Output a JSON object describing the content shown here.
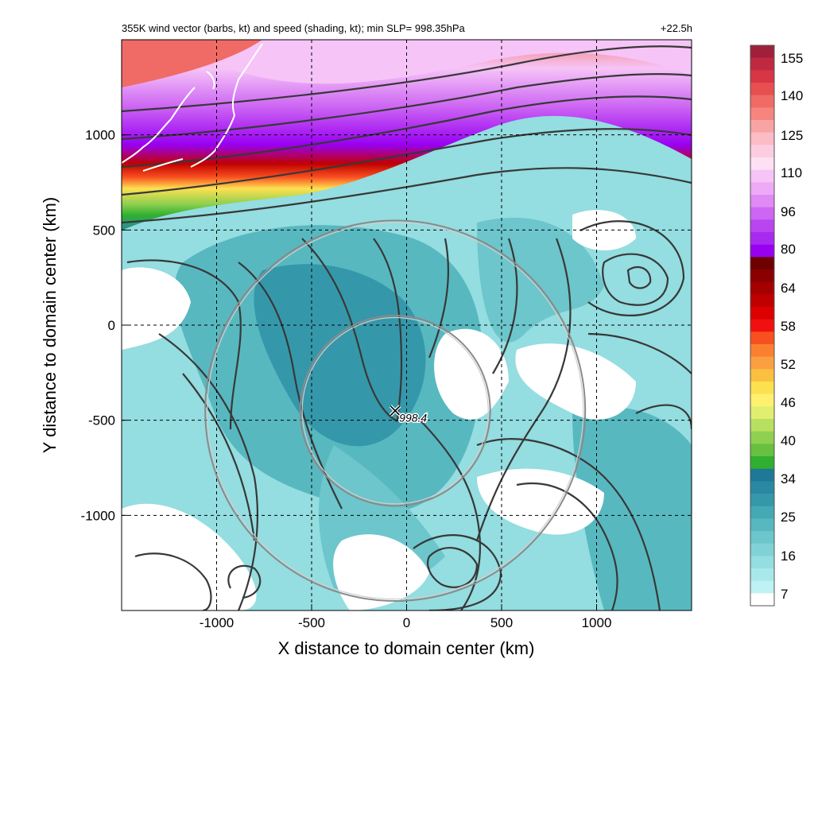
{
  "chart_data": {
    "type": "heatmap",
    "title": "355K wind vector (barbs, kt) and speed (shading, kt); min SLP= 998.35hPa",
    "forecast_time": "+22.5h",
    "xlabel": "X distance to domain center (km)",
    "ylabel": "Y distance to domain center (km)",
    "xlim": [
      -1500,
      1500
    ],
    "ylim": [
      -1500,
      1500
    ],
    "x_ticks": [
      -1000,
      -500,
      0,
      500,
      1000
    ],
    "y_ticks": [
      1000,
      500,
      0,
      -500,
      -1000
    ],
    "x_tick_labels": [
      "-1000",
      "-500",
      "0",
      "500",
      "1000"
    ],
    "y_tick_labels": [
      "1000",
      "500",
      "0",
      "-500",
      "-1000"
    ],
    "grid": "dashed",
    "colorbar": {
      "labels": [
        "155",
        "140",
        "125",
        "110",
        "96",
        "80",
        "64",
        "58",
        "52",
        "46",
        "40",
        "34",
        "25",
        "16",
        "7"
      ],
      "colors": [
        "#a0203a",
        "#c02a40",
        "#d83545",
        "#e8504f",
        "#f06a66",
        "#f7857f",
        "#f9a4a4",
        "#fbbcc5",
        "#fccde1",
        "#fde0f3",
        "#f6c4f7",
        "#eeaaf6",
        "#e08af5",
        "#cd66f3",
        "#b845f0",
        "#a82af0",
        "#9800f2",
        "#6e0000",
        "#8a0000",
        "#a50000",
        "#c00000",
        "#dc0000",
        "#f01010",
        "#f85020",
        "#fa8030",
        "#fba040",
        "#fcc040",
        "#fde050",
        "#fff070",
        "#e0ef70",
        "#b8e060",
        "#90d050",
        "#68c040",
        "#30b030",
        "#1e7896",
        "#2a88a2",
        "#3598aa",
        "#45a8b4",
        "#58b8c0",
        "#6cc6cb",
        "#80d2d6",
        "#94dde0",
        "#a8e8eb",
        "#bef2f4",
        "#ffffff"
      ]
    },
    "min_slp_hpa": 998.35,
    "low_center": {
      "x": -60,
      "y": -450,
      "label": "998.4"
    },
    "range_rings_km": [
      500,
      1000
    ],
    "colors": {
      "streamline": "#383838",
      "coastline": "#ffffff",
      "ring": "#8a8a8a"
    }
  }
}
